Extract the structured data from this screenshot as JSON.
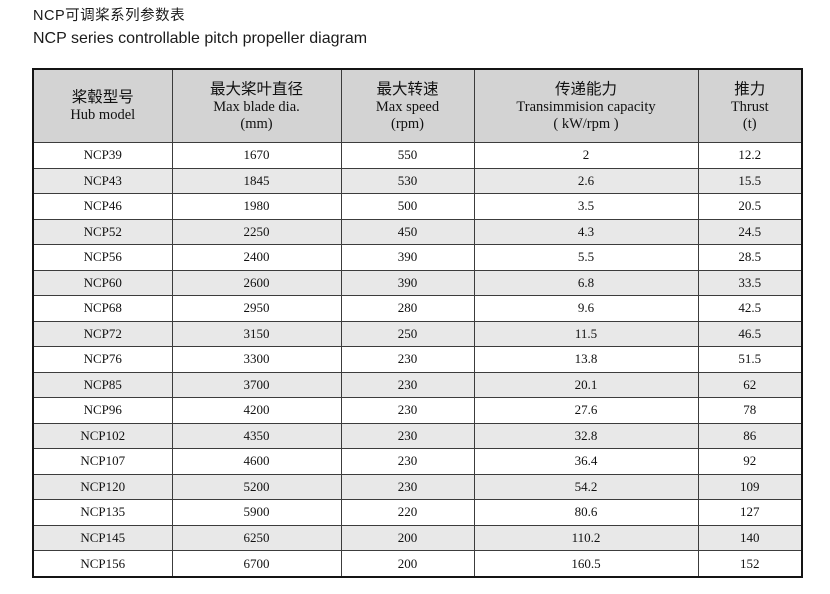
{
  "page": {
    "title_zh": "NCP可调桨系列参数表",
    "title_en": "NCP series controllable pitch propeller diagram"
  },
  "table": {
    "columns": [
      {
        "zh": "桨毂型号",
        "en": "Hub model",
        "unit": ""
      },
      {
        "zh": "最大桨叶直径",
        "en": "Max blade dia.",
        "unit": "(mm)"
      },
      {
        "zh": "最大转速",
        "en": "Max speed",
        "unit": "(rpm)"
      },
      {
        "zh": "传递能力",
        "en": "Transimmision capacity",
        "unit": "( kW/rpm )"
      },
      {
        "zh": "推力",
        "en": "Thrust",
        "unit": "(t)"
      }
    ],
    "rows": [
      [
        "NCP39",
        "1670",
        "550",
        "2",
        "12.2"
      ],
      [
        "NCP43",
        "1845",
        "530",
        "2.6",
        "15.5"
      ],
      [
        "NCP46",
        "1980",
        "500",
        "3.5",
        "20.5"
      ],
      [
        "NCP52",
        "2250",
        "450",
        "4.3",
        "24.5"
      ],
      [
        "NCP56",
        "2400",
        "390",
        "5.5",
        "28.5"
      ],
      [
        "NCP60",
        "2600",
        "390",
        "6.8",
        "33.5"
      ],
      [
        "NCP68",
        "2950",
        "280",
        "9.6",
        "42.5"
      ],
      [
        "NCP72",
        "3150",
        "250",
        "11.5",
        "46.5"
      ],
      [
        "NCP76",
        "3300",
        "230",
        "13.8",
        "51.5"
      ],
      [
        "NCP85",
        "3700",
        "230",
        "20.1",
        "62"
      ],
      [
        "NCP96",
        "4200",
        "230",
        "27.6",
        "78"
      ],
      [
        "NCP102",
        "4350",
        "230",
        "32.8",
        "86"
      ],
      [
        "NCP107",
        "4600",
        "230",
        "36.4",
        "92"
      ],
      [
        "NCP120",
        "5200",
        "230",
        "54.2",
        "109"
      ],
      [
        "NCP135",
        "5900",
        "220",
        "80.6",
        "127"
      ],
      [
        "NCP145",
        "6250",
        "200",
        "110.2",
        "140"
      ],
      [
        "NCP156",
        "6700",
        "200",
        "160.5",
        "152"
      ]
    ],
    "cell_names": [
      "hub-model-cell",
      "blade-dia-cell",
      "max-speed-cell",
      "capacity-cell",
      "thrust-cell"
    ]
  },
  "colors": {
    "header_bg": "#d3d3d3",
    "stripe_bg": "#e8e8e8",
    "row_bg": "#ffffff",
    "border": "#141414",
    "grid": "#3c3c3c"
  }
}
